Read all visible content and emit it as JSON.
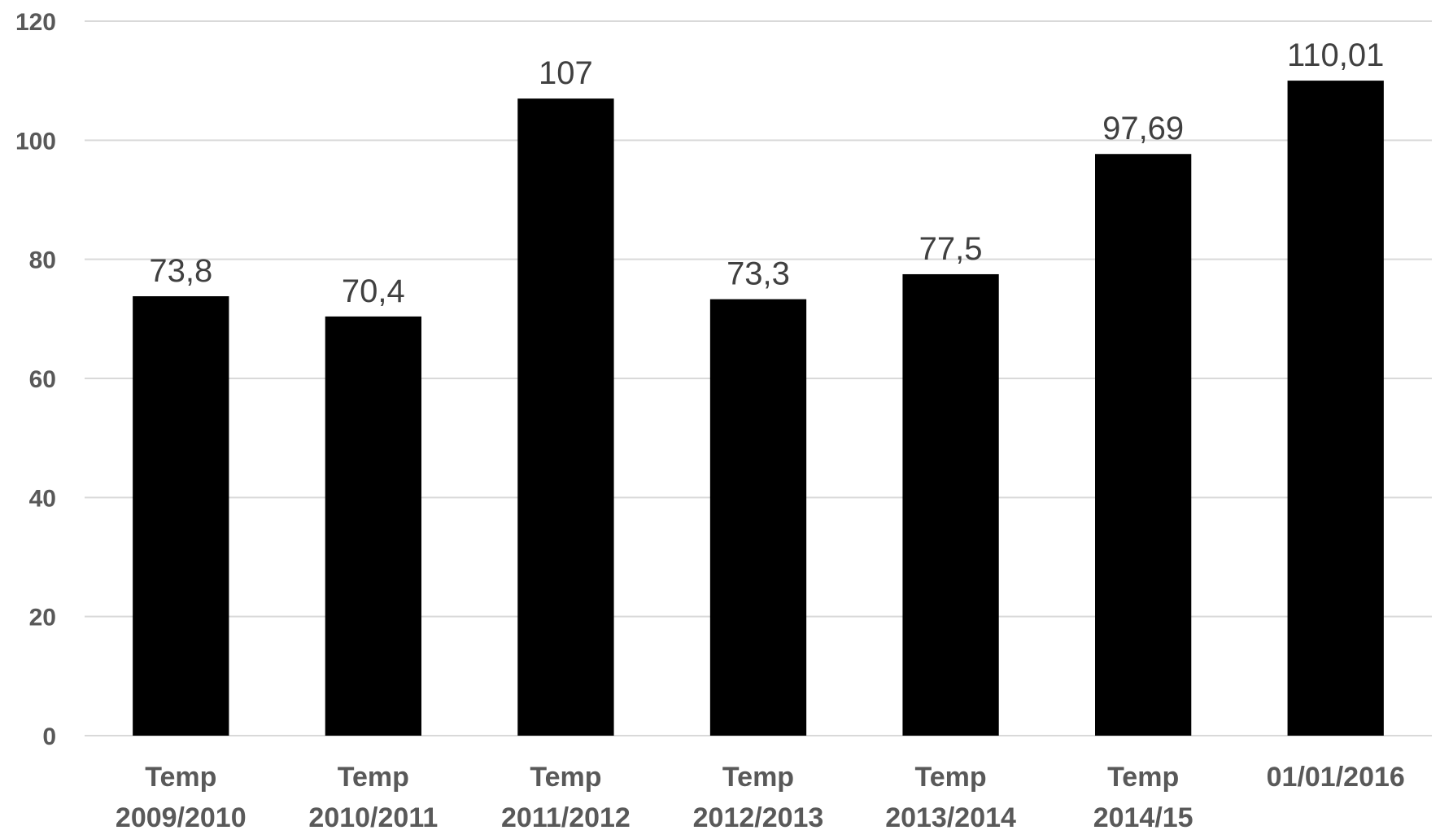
{
  "chart_data": {
    "type": "bar",
    "title": "",
    "xlabel": "",
    "ylabel": "",
    "categories": [
      [
        "Temp",
        "2009/2010"
      ],
      [
        "Temp",
        "2010/2011"
      ],
      [
        "Temp",
        "2011/2012"
      ],
      [
        "Temp",
        "2012/2013"
      ],
      [
        "Temp",
        "2013/2014"
      ],
      [
        "Temp",
        "2014/15"
      ],
      [
        "01/01/2016"
      ]
    ],
    "values": [
      73.8,
      70.4,
      107,
      73.3,
      77.5,
      97.69,
      110.01
    ],
    "data_labels": [
      "73,8",
      "70,4",
      "107",
      "73,3",
      "77,5",
      "97,69",
      "110,01"
    ],
    "ylim": [
      0,
      120
    ],
    "yticks": [
      0,
      20,
      40,
      60,
      80,
      100,
      120
    ],
    "grid": true,
    "bar_color": "#000000",
    "grid_color": "#d9d9d9"
  }
}
